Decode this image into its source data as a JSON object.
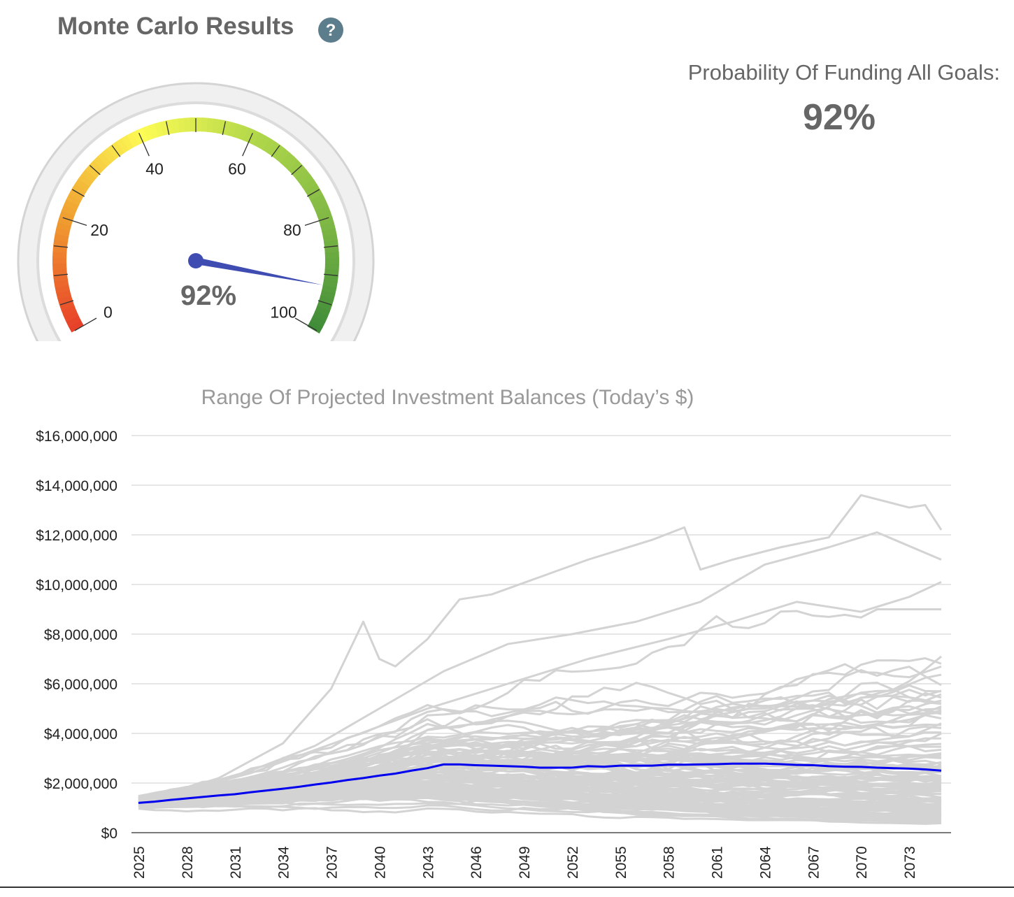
{
  "header": {
    "title": "Monte Carlo Results",
    "help_icon": "question-circle-icon",
    "help_label": "?"
  },
  "probability": {
    "label": "Probability Of Funding All Goals:",
    "value": "92%"
  },
  "gauge": {
    "value": 92,
    "min": 0,
    "max": 100,
    "tick_labels": [
      "0",
      "20",
      "40",
      "60",
      "80",
      "100"
    ],
    "value_label": "92%",
    "needle_color": "#3f4db3",
    "band_colors": [
      "#e8412a",
      "#f0a030",
      "#fdfb55",
      "#b2d84a",
      "#7fb845",
      "#3d8a38"
    ]
  },
  "chart_data": {
    "type": "line",
    "title": "Range Of Projected Investment Balances (Today’s $)",
    "xlabel": "",
    "ylabel": "",
    "xlim": [
      2025,
      2075
    ],
    "ylim": [
      0,
      16000000
    ],
    "grid": true,
    "x_tick_labels": [
      "2025",
      "2028",
      "2031",
      "2034",
      "2037",
      "2040",
      "2043",
      "2046",
      "2049",
      "2052",
      "2055",
      "2058",
      "2061",
      "2064",
      "2067",
      "2070",
      "2073"
    ],
    "y_tick_labels": [
      "$0",
      "$2,000,000",
      "$4,000,000",
      "$6,000,000",
      "$8,000,000",
      "$10,000,000",
      "$12,000,000",
      "$14,000,000",
      "$16,000,000"
    ],
    "median_color": "#0000ee",
    "simulation_color": "#d3d3d3",
    "median": [
      1.2,
      1.25,
      1.32,
      1.38,
      1.44,
      1.5,
      1.55,
      1.63,
      1.7,
      1.77,
      1.85,
      1.94,
      2.02,
      2.12,
      2.2,
      2.3,
      2.38,
      2.5,
      2.6,
      2.75,
      2.75,
      2.72,
      2.7,
      2.68,
      2.66,
      2.62,
      2.62,
      2.62,
      2.68,
      2.66,
      2.7,
      2.7,
      2.7,
      2.74,
      2.74,
      2.75,
      2.76,
      2.78,
      2.78,
      2.78,
      2.76,
      2.73,
      2.72,
      2.68,
      2.66,
      2.65,
      2.62,
      2.6,
      2.58,
      2.55,
      2.5
    ],
    "highlighted_simulations": [
      {
        "points": [
          [
            2025,
            1.2
          ],
          [
            2030,
            2.2
          ],
          [
            2034,
            3.6
          ],
          [
            2037,
            5.8
          ],
          [
            2039,
            8.5
          ],
          [
            2040,
            7.0
          ],
          [
            2041,
            6.7
          ],
          [
            2043,
            7.8
          ],
          [
            2045,
            9.4
          ],
          [
            2047,
            9.6
          ],
          [
            2050,
            10.3
          ],
          [
            2053,
            11.0
          ],
          [
            2057,
            11.8
          ],
          [
            2059,
            12.3
          ],
          [
            2060,
            10.6
          ],
          [
            2062,
            11.0
          ],
          [
            2065,
            11.5
          ],
          [
            2068,
            11.9
          ],
          [
            2070,
            13.6
          ],
          [
            2073,
            13.1
          ],
          [
            2074,
            13.2
          ],
          [
            2075,
            12.2
          ]
        ]
      },
      {
        "points": [
          [
            2025,
            1.2
          ],
          [
            2032,
            2.5
          ],
          [
            2036,
            3.5
          ],
          [
            2040,
            5.0
          ],
          [
            2044,
            6.5
          ],
          [
            2048,
            7.6
          ],
          [
            2052,
            8.0
          ],
          [
            2056,
            8.5
          ],
          [
            2060,
            9.3
          ],
          [
            2064,
            10.8
          ],
          [
            2068,
            11.5
          ],
          [
            2071,
            12.1
          ],
          [
            2075,
            11.0
          ]
        ]
      },
      {
        "points": [
          [
            2025,
            1.2
          ],
          [
            2032,
            2.4
          ],
          [
            2038,
            3.8
          ],
          [
            2043,
            5.0
          ],
          [
            2048,
            6.0
          ],
          [
            2053,
            7.0
          ],
          [
            2058,
            7.8
          ],
          [
            2062,
            8.5
          ],
          [
            2066,
            9.3
          ],
          [
            2070,
            8.9
          ],
          [
            2073,
            9.5
          ],
          [
            2075,
            10.1
          ]
        ]
      }
    ],
    "simulation_count": 120
  }
}
